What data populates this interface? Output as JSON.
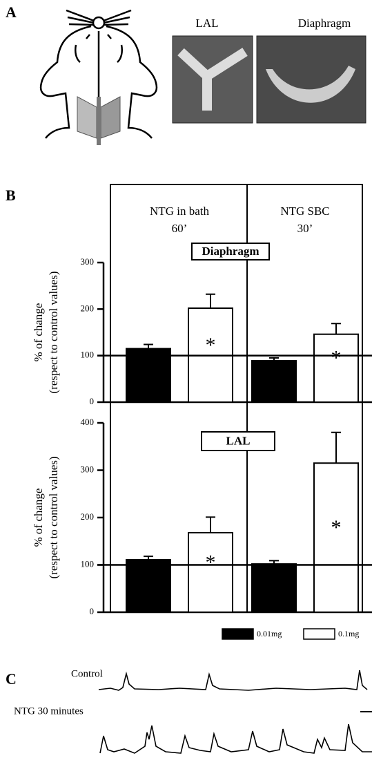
{
  "panels": {
    "a": {
      "label": "A",
      "images": [
        "LAL",
        "Diaphragm"
      ]
    },
    "b": {
      "label": "B"
    },
    "c": {
      "label": "C",
      "traces": [
        "Control",
        "NTG 30 minutes"
      ]
    }
  },
  "groups": [
    [
      "NTG in bath",
      "60’"
    ],
    [
      "NTG SBC",
      "30’"
    ]
  ],
  "legend": [
    {
      "name": "0.01mg",
      "color": "#000000"
    },
    {
      "name": "0.1mg",
      "color": "#ffffff"
    }
  ],
  "chart_data": [
    {
      "type": "bar",
      "title": "Diaphragm",
      "y_label": [
        "% of change",
        "(respect to control values)"
      ],
      "ylim": [
        0,
        300
      ],
      "yticks": [
        0,
        100,
        200,
        300
      ],
      "reference_line": 100,
      "series": [
        {
          "values": [
            115,
            89
          ],
          "errors": [
            9,
            6
          ]
        },
        {
          "values": [
            202,
            146
          ],
          "errors": [
            30,
            23
          ],
          "annotations": [
            "*",
            "*"
          ]
        }
      ]
    },
    {
      "type": "bar",
      "title": "LAL",
      "y_label": [
        "% of change",
        "(respect to control values)"
      ],
      "ylim": [
        0,
        400
      ],
      "yticks": [
        0,
        100,
        200,
        300,
        400
      ],
      "reference_line": 100,
      "series": [
        {
          "values": [
            111,
            102
          ],
          "errors": [
            7,
            7
          ]
        },
        {
          "values": [
            168,
            315
          ],
          "errors": [
            33,
            65
          ],
          "annotations": [
            "*",
            "*"
          ]
        }
      ]
    }
  ]
}
